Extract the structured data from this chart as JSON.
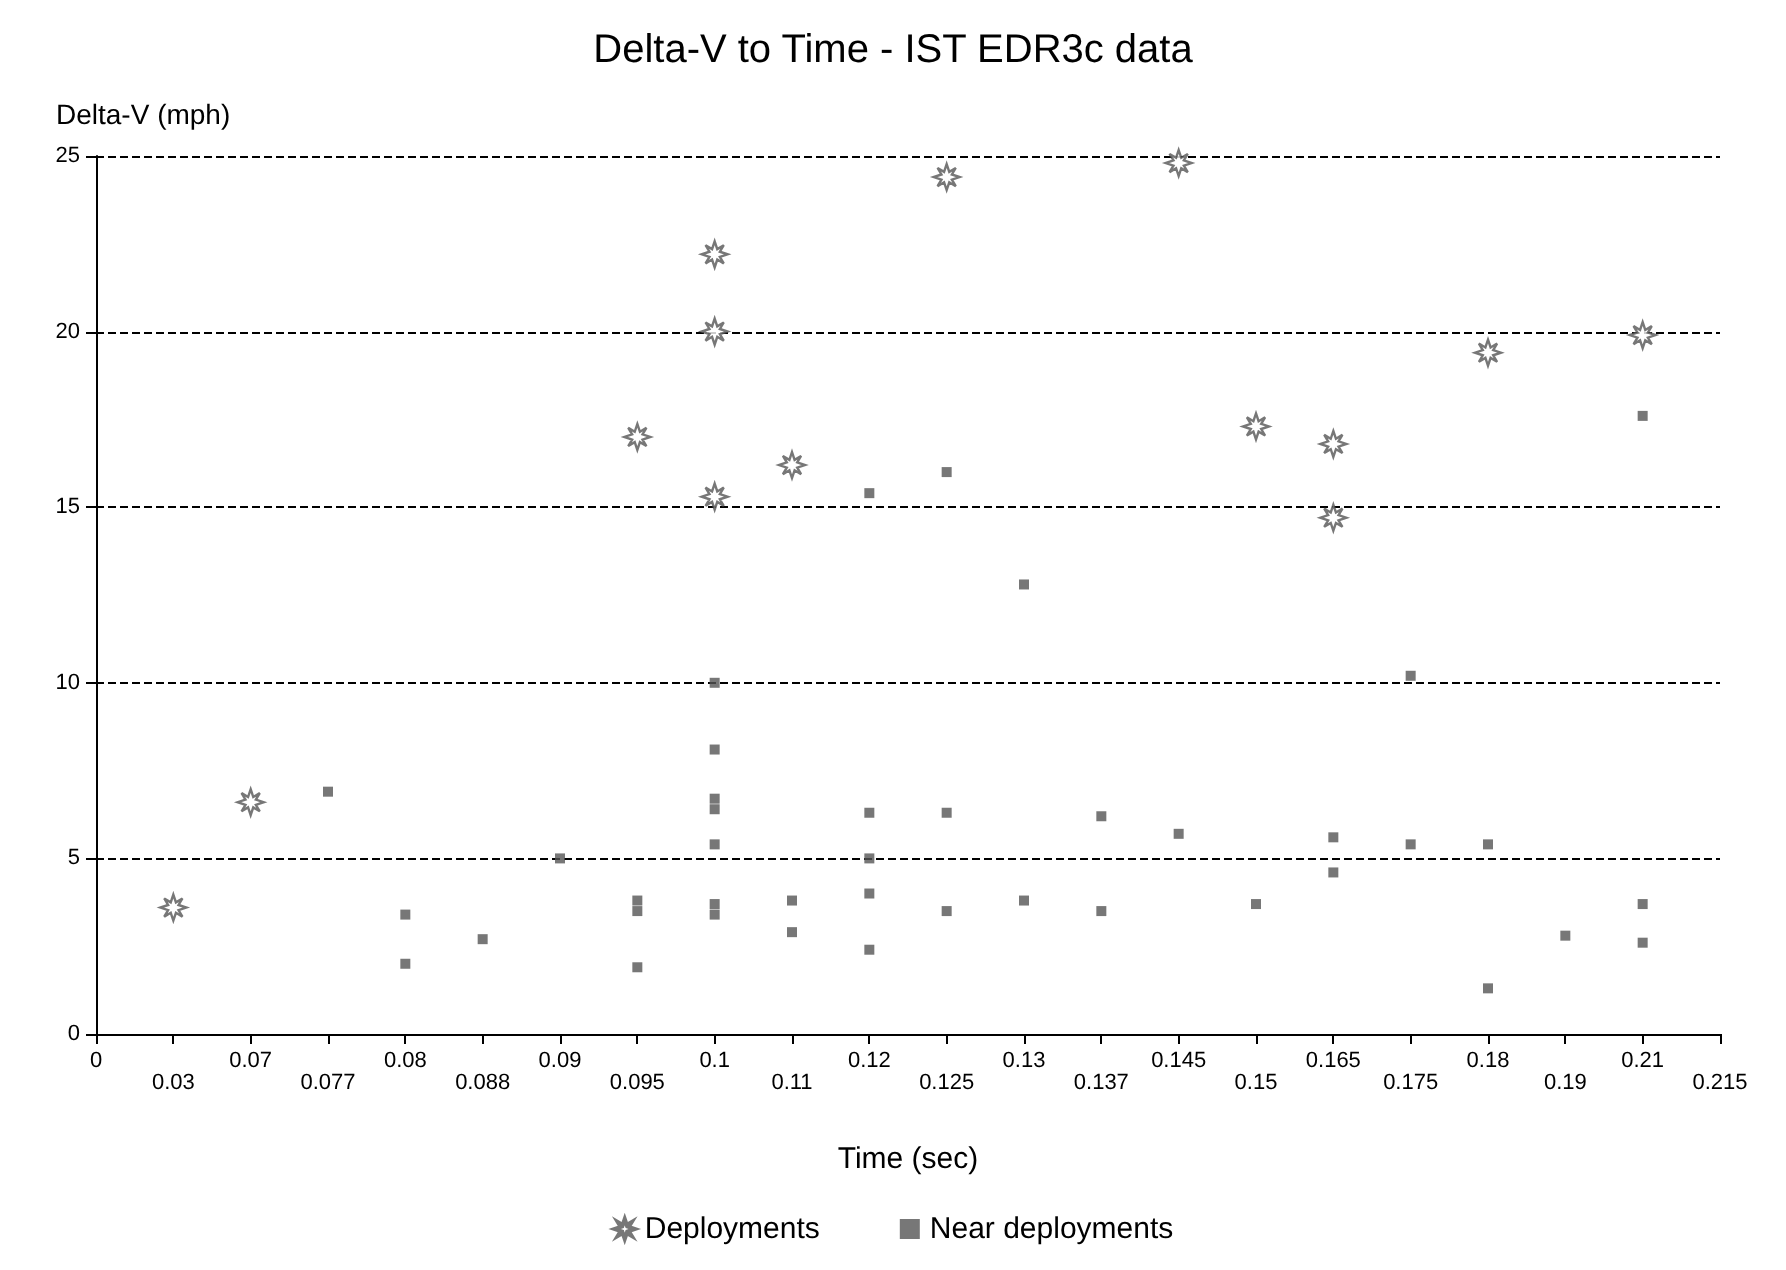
{
  "chart_data": {
    "type": "scatter",
    "title": "Delta-V to Time - IST EDR3c data",
    "xlabel": "Time (sec)",
    "ylabel": "Delta-V (mph)",
    "categories": [
      "0",
      "0.03",
      "0.07",
      "0.077",
      "0.08",
      "0.088",
      "0.09",
      "0.095",
      "0.1",
      "0.11",
      "0.12",
      "0.125",
      "0.13",
      "0.137",
      "0.145",
      "0.15",
      "0.165",
      "0.175",
      "0.18",
      "0.19",
      "0.21",
      "0.215"
    ],
    "ylim": [
      0,
      25
    ],
    "yticks": [
      0,
      5,
      10,
      15,
      20,
      25
    ],
    "grid": "y",
    "line_style": "dashed",
    "legend": "bottom",
    "series": [
      {
        "name": "Deployments",
        "color": "#555555",
        "marker": "star",
        "x": [
          "0.03",
          "0.07",
          "0.095",
          "0.1",
          "0.1",
          "0.1",
          "0.11",
          "0.125",
          "0.145",
          "0.15",
          "0.165",
          "0.165",
          "0.18",
          "0.21"
        ],
        "values": [
          3.6,
          6.6,
          17,
          22.2,
          20,
          15.3,
          16.2,
          24.4,
          24.8,
          17.3,
          16.8,
          14.7,
          19.4,
          19.9
        ]
      },
      {
        "name": "Near deployments",
        "color": "#555555",
        "marker": "square",
        "x": [
          "0.077",
          "0.08",
          "0.08",
          "0.088",
          "0.09",
          "0.095",
          "0.095",
          "0.095",
          "0.1",
          "0.1",
          "0.1",
          "0.1",
          "0.1",
          "0.1",
          "0.1",
          "0.11",
          "0.11",
          "0.12",
          "0.12",
          "0.12",
          "0.12",
          "0.12",
          "0.125",
          "0.125",
          "0.125",
          "0.13",
          "0.13",
          "0.137",
          "0.137",
          "0.145",
          "0.15",
          "0.165",
          "0.165",
          "0.175",
          "0.175",
          "0.18",
          "0.18",
          "0.19",
          "0.21",
          "0.21",
          "0.21"
        ],
        "values": [
          6.9,
          3.4,
          2.0,
          2.7,
          5.0,
          3.8,
          3.5,
          1.9,
          10,
          8.1,
          6.7,
          6.4,
          5.4,
          3.7,
          3.4,
          3.8,
          2.9,
          15.4,
          6.3,
          5.0,
          4.0,
          2.4,
          16,
          6.3,
          3.5,
          12.8,
          3.8,
          6.2,
          3.5,
          5.7,
          3.7,
          5.6,
          4.6,
          10.2,
          5.4,
          5.4,
          1.3,
          2.8,
          17.6,
          3.7,
          2.6
        ]
      }
    ]
  }
}
